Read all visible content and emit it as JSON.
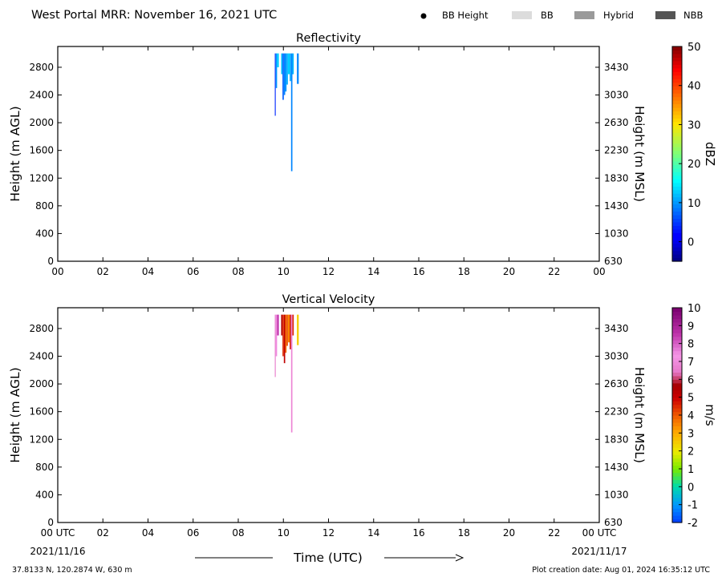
{
  "header": {
    "title": "West Portal MRR:  November 16, 2021 UTC",
    "legend": [
      {
        "label": "BB Height",
        "marker": "dot",
        "color": "#000000"
      },
      {
        "label": "BB",
        "marker": "swatch",
        "color": "#dcdcdc"
      },
      {
        "label": "Hybrid",
        "marker": "swatch",
        "color": "#9a9a9a"
      },
      {
        "label": "NBB",
        "marker": "swatch",
        "color": "#555555"
      }
    ]
  },
  "footer": {
    "location": "37.8133 N, 120.2874 W, 630 m",
    "creation": "Plot creation date: Aug 01, 2024 16:35:12 UTC",
    "time_label": "Time (UTC)",
    "start_date": "2021/11/16",
    "end_date": "2021/11/17"
  },
  "chart_data": [
    {
      "type": "heatmap",
      "title": "Reflectivity",
      "ylabel": "Height (m AGL)",
      "y2label": "Height (m MSL)",
      "x_ticks": [
        "00",
        "02",
        "04",
        "06",
        "08",
        "10",
        "12",
        "14",
        "16",
        "18",
        "20",
        "22",
        "00"
      ],
      "xlim_hours": [
        0,
        24
      ],
      "y_ticks": [
        0,
        400,
        800,
        1200,
        1600,
        2000,
        2400,
        2800
      ],
      "y2_ticks": [
        630,
        1030,
        1430,
        1830,
        2230,
        2630,
        3030,
        3430
      ],
      "ylim": [
        0,
        3100
      ],
      "colorbar": {
        "label": "dBZ",
        "range": [
          -5,
          50
        ],
        "ticks": [
          "0",
          "10",
          "20",
          "30",
          "40",
          "50"
        ],
        "colormap": "jet"
      },
      "columns": [
        {
          "start": 9.62,
          "end": 9.66,
          "bottom": 2100,
          "top": 3000,
          "value": 4
        },
        {
          "start": 9.66,
          "end": 9.72,
          "bottom": 2500,
          "top": 3000,
          "value": 10
        },
        {
          "start": 9.72,
          "end": 9.8,
          "bottom": 2800,
          "top": 3000,
          "value": 13
        },
        {
          "start": 9.9,
          "end": 9.96,
          "bottom": 2700,
          "top": 3000,
          "value": 12
        },
        {
          "start": 9.96,
          "end": 10.02,
          "bottom": 2330,
          "top": 3000,
          "value": 7
        },
        {
          "start": 10.02,
          "end": 10.08,
          "bottom": 2400,
          "top": 3000,
          "value": 9
        },
        {
          "start": 10.08,
          "end": 10.14,
          "bottom": 2450,
          "top": 3000,
          "value": 10
        },
        {
          "start": 10.14,
          "end": 10.2,
          "bottom": 2550,
          "top": 3000,
          "value": 11
        },
        {
          "start": 10.2,
          "end": 10.28,
          "bottom": 2700,
          "top": 3000,
          "value": 13
        },
        {
          "start": 10.28,
          "end": 10.34,
          "bottom": 2600,
          "top": 3000,
          "value": 11
        },
        {
          "start": 10.34,
          "end": 10.4,
          "bottom": 1300,
          "top": 3000,
          "value": 9
        },
        {
          "start": 10.4,
          "end": 10.46,
          "bottom": 2700,
          "top": 3000,
          "value": 12
        },
        {
          "start": 10.6,
          "end": 10.68,
          "bottom": 2560,
          "top": 3000,
          "value": 9
        }
      ]
    },
    {
      "type": "heatmap",
      "title": "Vertical Velocity",
      "ylabel": "Height (m AGL)",
      "y2label": "Height (m MSL)",
      "x_ticks": [
        "00 UTC",
        "02",
        "04",
        "06",
        "08",
        "10",
        "12",
        "14",
        "16",
        "18",
        "20",
        "22",
        "00 UTC"
      ],
      "xlim_hours": [
        0,
        24
      ],
      "y_ticks": [
        0,
        400,
        800,
        1200,
        1600,
        2000,
        2400,
        2800
      ],
      "y2_ticks": [
        630,
        1030,
        1430,
        1830,
        2230,
        2630,
        3030,
        3430
      ],
      "ylim": [
        0,
        3100
      ],
      "colorbar": {
        "label": "m/s",
        "range": [
          -2,
          10
        ],
        "ticks": [
          "-2",
          "-1",
          "0",
          "1",
          "2",
          "3",
          "4",
          "5",
          "6",
          "7",
          "8",
          "9",
          "10"
        ],
        "colormap": "velocity"
      },
      "columns": [
        {
          "start": 9.62,
          "end": 9.66,
          "bottom": 2100,
          "top": 3000,
          "value": 6.5
        },
        {
          "start": 9.66,
          "end": 9.72,
          "bottom": 2400,
          "top": 3000,
          "value": 7.5
        },
        {
          "start": 9.72,
          "end": 9.8,
          "bottom": 2700,
          "top": 3000,
          "value": 8.5
        },
        {
          "start": 9.9,
          "end": 9.96,
          "bottom": 2700,
          "top": 3000,
          "value": 5.5
        },
        {
          "start": 9.96,
          "end": 10.02,
          "bottom": 2400,
          "top": 3000,
          "value": 4.5
        },
        {
          "start": 10.02,
          "end": 10.08,
          "bottom": 2300,
          "top": 3000,
          "value": 5.2
        },
        {
          "start": 10.08,
          "end": 10.14,
          "bottom": 2450,
          "top": 3000,
          "value": 3.8
        },
        {
          "start": 10.14,
          "end": 10.2,
          "bottom": 2550,
          "top": 3000,
          "value": 4.2
        },
        {
          "start": 10.2,
          "end": 10.28,
          "bottom": 2600,
          "top": 3000,
          "value": 3.5
        },
        {
          "start": 10.28,
          "end": 10.34,
          "bottom": 2500,
          "top": 3000,
          "value": 4.8
        },
        {
          "start": 10.34,
          "end": 10.4,
          "bottom": 1300,
          "top": 3000,
          "value": 6.8
        },
        {
          "start": 10.4,
          "end": 10.46,
          "bottom": 2700,
          "top": 3000,
          "value": 4.5
        },
        {
          "start": 10.6,
          "end": 10.68,
          "bottom": 2560,
          "top": 3000,
          "value": 2.5
        }
      ]
    }
  ]
}
